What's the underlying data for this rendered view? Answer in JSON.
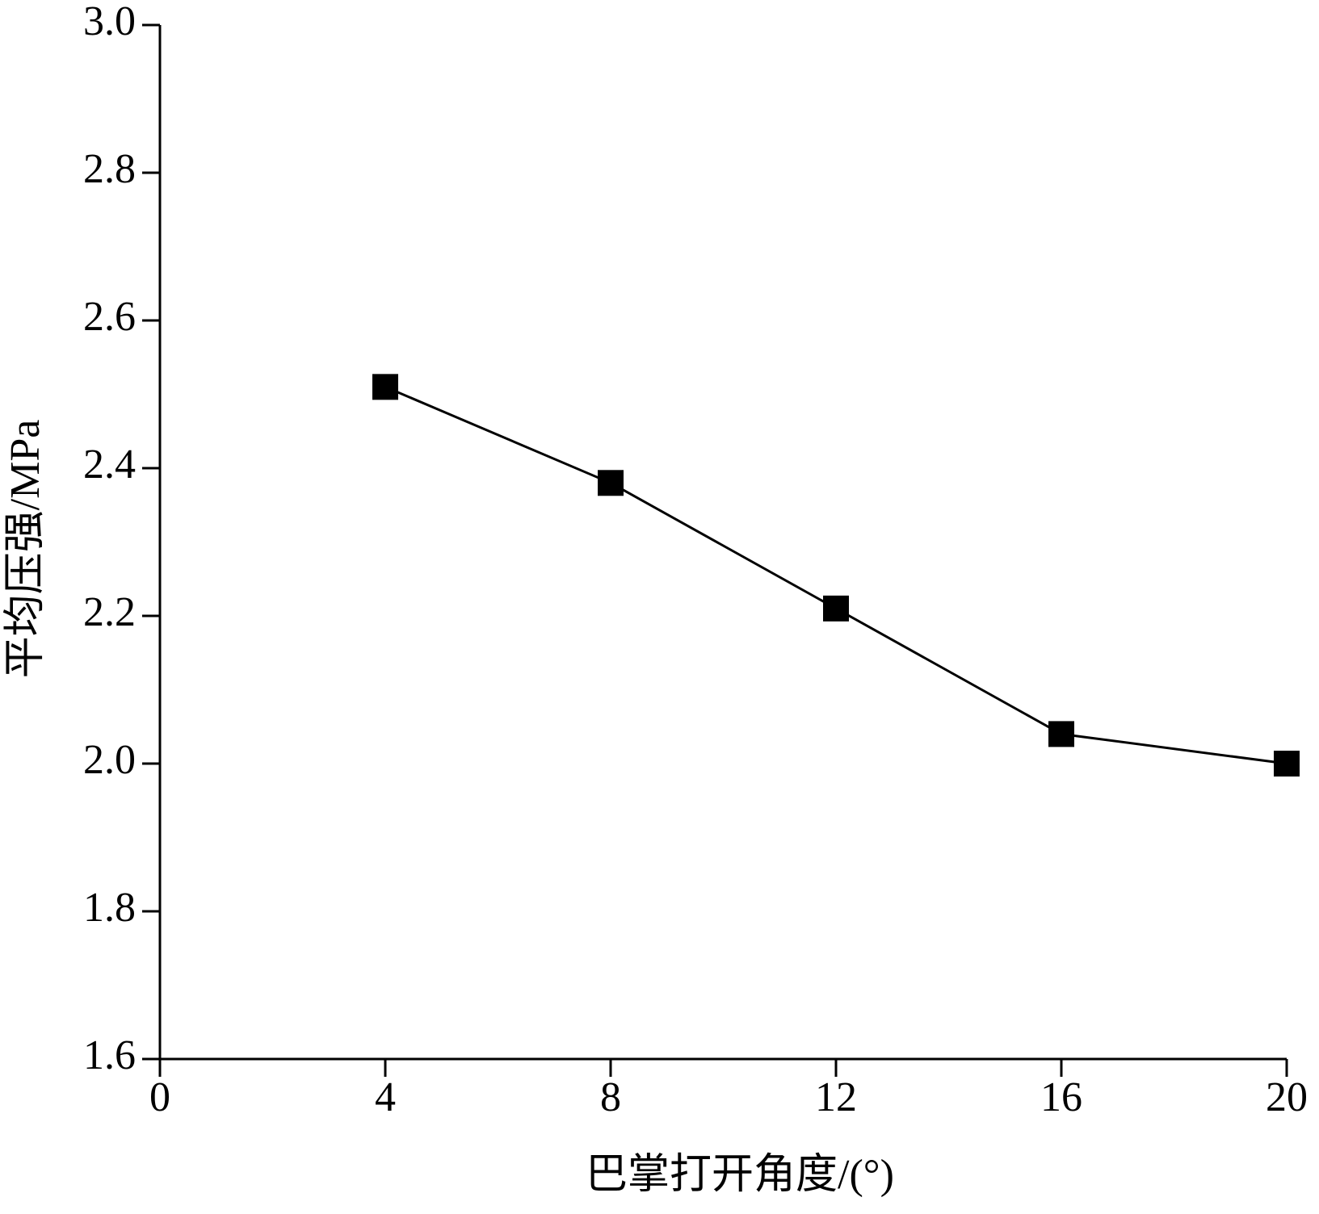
{
  "chart_data": {
    "type": "line",
    "xlabel": "巴掌打开角度/(°)",
    "ylabel": "平均压强/MPa",
    "x": [
      4,
      8,
      12,
      16,
      20
    ],
    "series": [
      {
        "color": "#000000",
        "values": [
          2.51,
          2.38,
          2.21,
          2.04,
          2.0
        ]
      }
    ],
    "xlim": [
      0,
      20
    ],
    "xticks": [
      0,
      4,
      8,
      12,
      16,
      20
    ],
    "ylim": [
      1.6,
      3.0
    ],
    "yticks": [
      1.6,
      1.8,
      {
        "value": 2.0,
        "label": "2.0"
      },
      2.2,
      2.4,
      2.6,
      2.8,
      {
        "value": 3.0,
        "label": "3.0"
      }
    ],
    "grid": false
  }
}
